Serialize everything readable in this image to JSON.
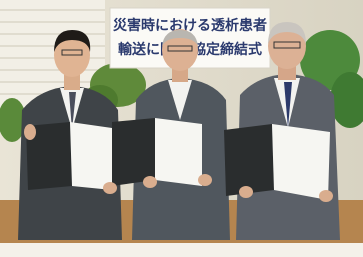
{
  "sign": {
    "line1": "災害時における透析患者",
    "line2_left": "輸送に関",
    "line2_right": "協定締結式"
  }
}
